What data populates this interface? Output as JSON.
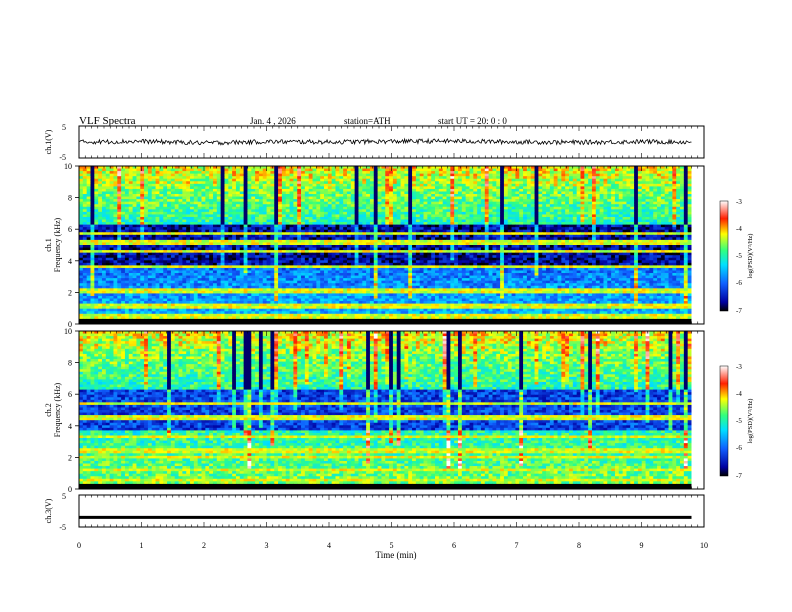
{
  "header": {
    "title": "VLF  Spectra",
    "date": "Jan. 4  , 2026",
    "station": "station=ATH",
    "start": "start  UT  =   20: 0   : 0"
  },
  "colorbar": {
    "label": "log(PSD)(V²/Hz)",
    "ticks": [
      "-3",
      "-4",
      "-5",
      "-6",
      "-7"
    ],
    "colors": [
      "#000000",
      "#0000a0",
      "#1060ff",
      "#00e0ff",
      "#30ff80",
      "#ffff00",
      "#ff2000",
      "#ffffff"
    ]
  },
  "chart_data": [
    {
      "type": "line",
      "ylabel": "ch.1(V)",
      "ylim": [
        -5,
        5
      ],
      "yticks": [
        "5",
        "-5"
      ],
      "xlim": [
        0,
        10
      ],
      "description_of_values": "noisy trace near 0 V",
      "x": [
        0,
        1,
        2,
        3,
        4,
        5,
        6,
        7,
        8,
        9,
        9.8
      ],
      "y": [
        0,
        0.2,
        -0.3,
        0.1,
        0,
        0.2,
        0.3,
        0,
        -0.1,
        0.1,
        0
      ]
    },
    {
      "type": "heatmap",
      "channel_label": "ch.1",
      "ylabel": "Frequency  (kHz)",
      "ylim": [
        0,
        10
      ],
      "yticks": [
        "0",
        "2",
        "4",
        "6",
        "8",
        "10"
      ],
      "xlim": [
        0,
        9.8
      ],
      "zlim": [
        -7,
        -3
      ]
    },
    {
      "type": "heatmap",
      "channel_label": "ch.2",
      "ylabel": "Frequency  (kHz)",
      "ylim": [
        0,
        10
      ],
      "yticks": [
        "0",
        "2",
        "4",
        "6",
        "8",
        "10"
      ],
      "xlim": [
        0,
        9.8
      ],
      "zlim": [
        -7,
        -3
      ]
    },
    {
      "type": "line",
      "ylabel": "ch.3(V)",
      "ylim": [
        -5,
        5
      ],
      "yticks": [
        "5",
        "-5"
      ],
      "xlim": [
        0,
        10
      ],
      "x": [
        0,
        9.8
      ],
      "y": [
        -2,
        -2
      ]
    }
  ],
  "xaxis": {
    "label": "Time  (min)",
    "ticks": [
      "0",
      "1",
      "2",
      "3",
      "4",
      "5",
      "6",
      "7",
      "8",
      "9",
      "10"
    ]
  }
}
